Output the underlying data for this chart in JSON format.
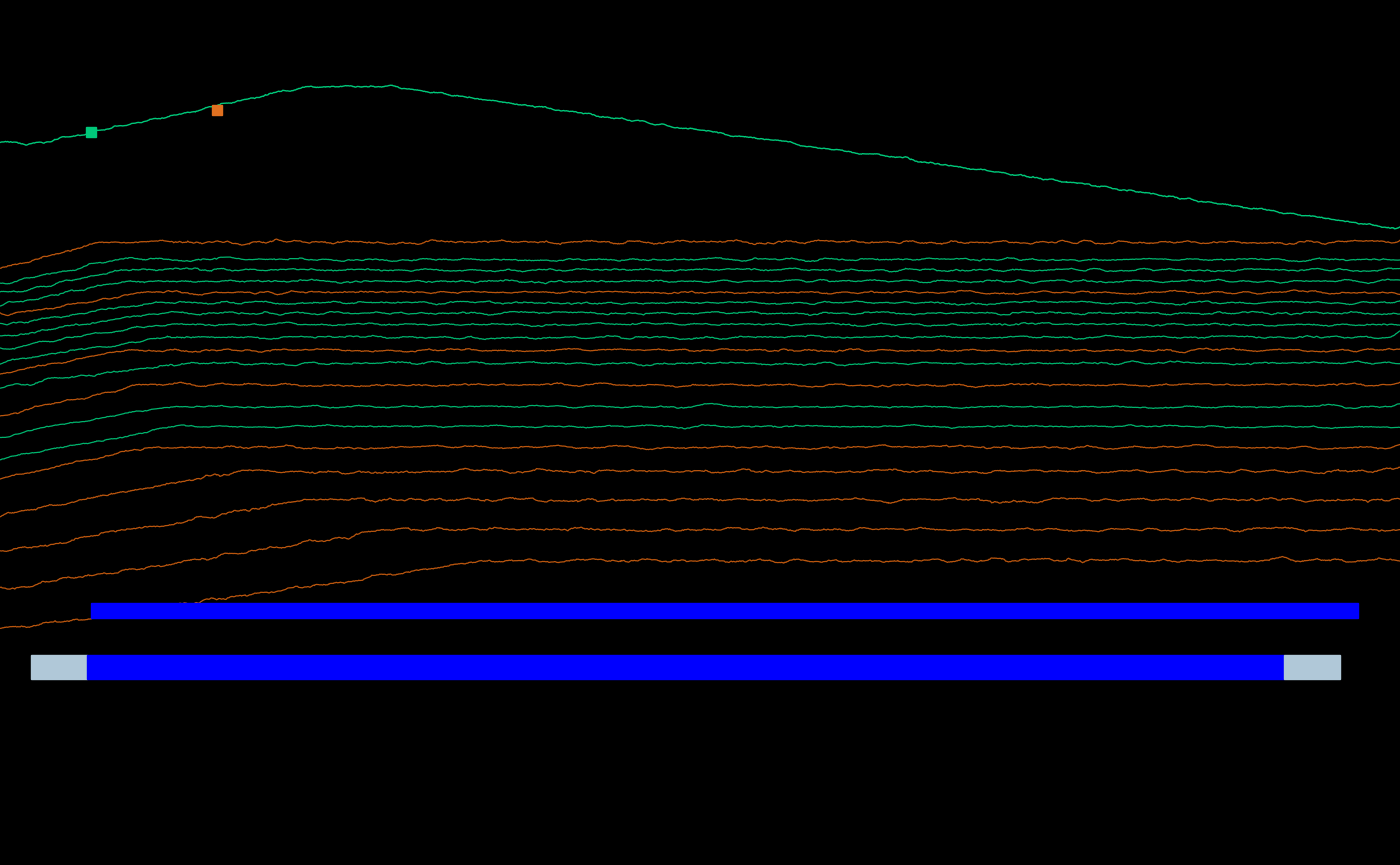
{
  "background_color": "#000000",
  "fig_width": 14.0,
  "fig_height": 8.65,
  "dpi": 100,
  "teal_color": "#00c87a",
  "orange_color": "#d06010",
  "blue_bar_color": "#0000ff",
  "blue_bar_light": "#b0c8d8",
  "top_line_color": "#00c87a",
  "marker1_color": "#00c87a",
  "marker2_color": "#e07020"
}
